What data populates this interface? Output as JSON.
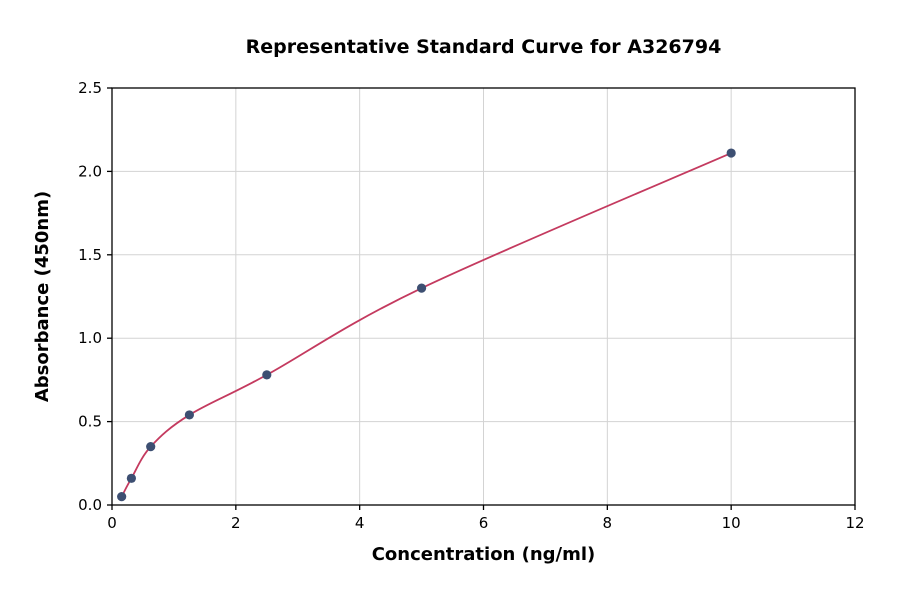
{
  "chart_data": {
    "type": "scatter",
    "title": "Representative Standard Curve for A326794",
    "xlabel": "Concentration (ng/ml)",
    "ylabel": "Absorbance (450nm)",
    "xlim": [
      0,
      12
    ],
    "ylim": [
      0,
      2.5
    ],
    "grid": true,
    "legend_position": "none",
    "x_ticks": [
      0,
      2,
      4,
      6,
      8,
      10,
      12
    ],
    "x_tick_labels": [
      "0",
      "2",
      "4",
      "6",
      "8",
      "10",
      "12"
    ],
    "y_ticks": [
      0,
      0.5,
      1.0,
      1.5,
      2.0,
      2.5
    ],
    "y_tick_labels": [
      "0.0",
      "0.5",
      "1.0",
      "1.5",
      "2.0",
      "2.5"
    ],
    "series": [
      {
        "name": "standard-points",
        "type": "scatter",
        "x": [
          0.156,
          0.313,
          0.625,
          1.25,
          2.5,
          5,
          10
        ],
        "y": [
          0.05,
          0.16,
          0.35,
          0.54,
          0.78,
          1.3,
          2.11
        ]
      },
      {
        "name": "fitted-curve",
        "type": "line",
        "x": [
          0.156,
          0.313,
          0.625,
          1.25,
          2.5,
          5,
          10
        ],
        "y": [
          0.05,
          0.16,
          0.35,
          0.54,
          0.78,
          1.3,
          2.11
        ]
      }
    ],
    "colors": {
      "point_color": "#3d4f72",
      "curve_color": "#c43a5f",
      "grid_color": "#d3d3d3",
      "spine_color": "#000000",
      "background": "#ffffff"
    }
  }
}
